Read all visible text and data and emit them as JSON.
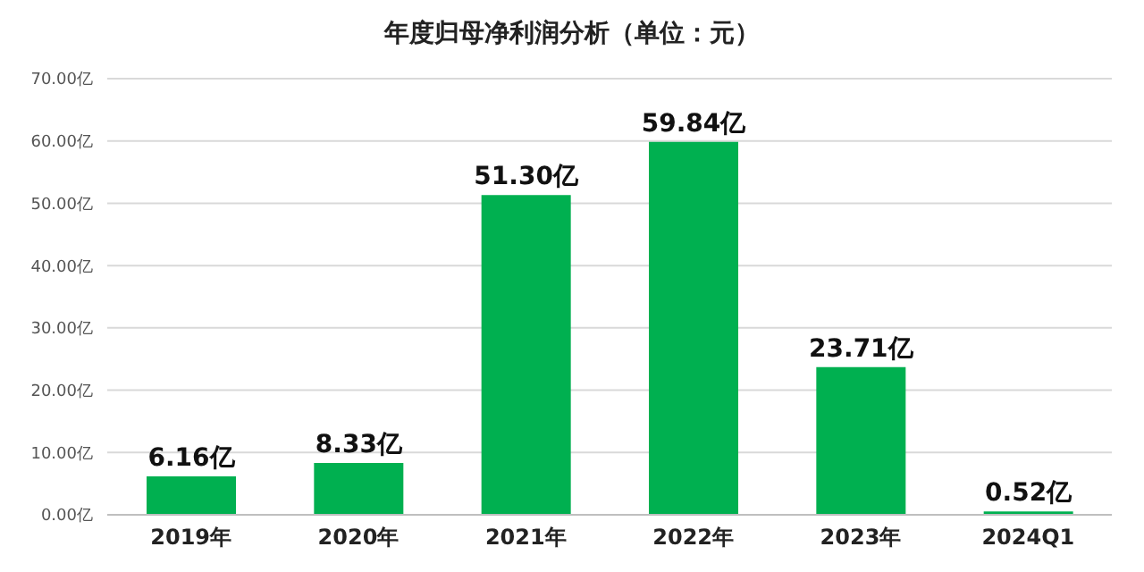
{
  "chart_data": {
    "type": "bar",
    "title": "年度归母净利润分析（单位：元）",
    "categories": [
      "2019年",
      "2020年",
      "2021年",
      "2022年",
      "2023年",
      "2024Q1"
    ],
    "values": [
      6.16,
      8.33,
      51.3,
      59.84,
      23.71,
      0.52
    ],
    "value_labels": [
      "6.16亿",
      "8.33亿",
      "51.30亿",
      "59.84亿",
      "23.71亿",
      "0.52亿"
    ],
    "color": "#00b050",
    "ylim": [
      0,
      70
    ],
    "yticks": [
      {
        "value": 0,
        "label": "0.00亿"
      },
      {
        "value": 10,
        "label": "10.00亿"
      },
      {
        "value": 20,
        "label": "20.00亿"
      },
      {
        "value": 30,
        "label": "30.00亿"
      },
      {
        "value": 40,
        "label": "40.00亿"
      },
      {
        "value": 50,
        "label": "50.00亿"
      },
      {
        "value": 60,
        "label": "60.00亿"
      },
      {
        "value": 70,
        "label": "70.00亿"
      }
    ],
    "grid": "y"
  }
}
